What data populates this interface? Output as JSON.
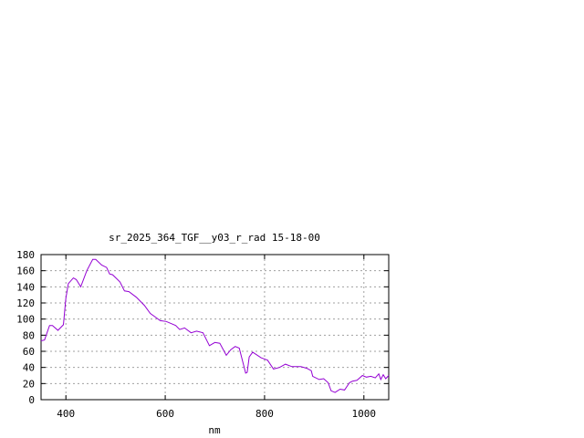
{
  "chart_data": {
    "type": "line",
    "title": "sr_2025_364_TGF__y03_r_rad 15-18-00",
    "xlabel": "nm",
    "ylabel": "",
    "xlim": [
      350,
      1050
    ],
    "ylim": [
      0,
      180
    ],
    "xticks": [
      400,
      600,
      800,
      1000
    ],
    "yticks": [
      0,
      20,
      40,
      60,
      80,
      100,
      120,
      140,
      160,
      180
    ],
    "grid": true,
    "line_color": "#9400d3",
    "series": [
      {
        "x": [
          350,
          357,
          367,
          373,
          384,
          395,
          400,
          405,
          415,
          421,
          430,
          442,
          454,
          460,
          472,
          482,
          488,
          494,
          509,
          518,
          527,
          542,
          558,
          570,
          579,
          590,
          602,
          621,
          629,
          639,
          652,
          663,
          676,
          689,
          700,
          710,
          723,
          732,
          741,
          749,
          762,
          765,
          769,
          776,
          793,
          806,
          818,
          830,
          842,
          855,
          873,
          885,
          894,
          897,
          910,
          919,
          928,
          934,
          942,
          952,
          961,
          971,
          977,
          986,
          997,
          1005,
          1014,
          1023,
          1030,
          1034,
          1039,
          1044,
          1050
        ],
        "y": [
          73,
          74,
          92,
          92,
          86,
          93,
          126,
          144,
          151,
          149,
          140,
          160,
          174,
          174,
          167,
          164,
          156,
          155,
          146,
          135,
          134,
          127,
          117,
          107,
          103,
          98,
          97,
          92,
          87,
          89,
          83,
          85,
          83,
          67,
          71,
          70,
          55,
          62,
          66,
          64,
          33,
          34,
          53,
          59,
          52,
          49,
          38,
          40,
          44,
          41,
          41,
          39,
          36,
          29,
          25,
          26,
          21,
          11,
          9,
          13,
          12,
          21,
          23,
          24,
          30,
          28,
          29,
          27,
          32,
          25,
          31,
          26,
          30
        ]
      }
    ]
  }
}
